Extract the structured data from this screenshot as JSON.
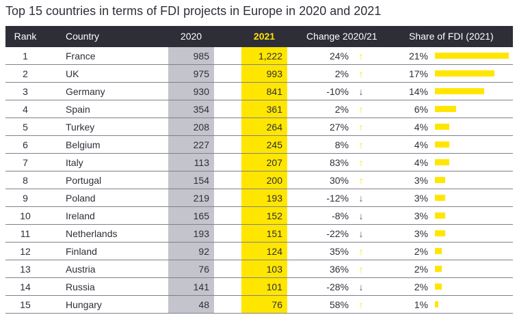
{
  "title": "Top 15 countries in terms of FDI projects in Europe in 2020 and 2021",
  "colors": {
    "header_bg": "#2e2e38",
    "accent_yellow": "#ffe600",
    "col2020_bg": "#c4c4cd",
    "arrow_up": "#ffe600",
    "arrow_down": "#5a5a66"
  },
  "header": {
    "rank": "Rank",
    "country": "Country",
    "y2020": "2020",
    "y2021": "2021",
    "change": "Change 2020/21",
    "share": "Share of FDI (2021)"
  },
  "chart_data": {
    "type": "table",
    "title": "Top 15 countries in terms of FDI projects in Europe in 2020 and 2021",
    "columns": [
      "Rank",
      "Country",
      "2020",
      "2021",
      "Change 2020/21",
      "Share of FDI (2021)"
    ],
    "rows": [
      {
        "rank": "1",
        "country": "France",
        "y2020": "985",
        "y2021": "1,222",
        "change": "24%",
        "dir": "up",
        "share": "21%",
        "share_value": 21
      },
      {
        "rank": "2",
        "country": "UK",
        "y2020": "975",
        "y2021": "993",
        "change": "2%",
        "dir": "up",
        "share": "17%",
        "share_value": 17
      },
      {
        "rank": "3",
        "country": "Germany",
        "y2020": "930",
        "y2021": "841",
        "change": "-10%",
        "dir": "down",
        "share": "14%",
        "share_value": 14
      },
      {
        "rank": "4",
        "country": "Spain",
        "y2020": "354",
        "y2021": "361",
        "change": "2%",
        "dir": "up",
        "share": "6%",
        "share_value": 6
      },
      {
        "rank": "5",
        "country": "Turkey",
        "y2020": "208",
        "y2021": "264",
        "change": "27%",
        "dir": "up",
        "share": "4%",
        "share_value": 4
      },
      {
        "rank": "6",
        "country": "Belgium",
        "y2020": "227",
        "y2021": "245",
        "change": "8%",
        "dir": "up",
        "share": "4%",
        "share_value": 4
      },
      {
        "rank": "7",
        "country": "Italy",
        "y2020": "113",
        "y2021": "207",
        "change": "83%",
        "dir": "up",
        "share": "4%",
        "share_value": 4
      },
      {
        "rank": "8",
        "country": "Portugal",
        "y2020": "154",
        "y2021": "200",
        "change": "30%",
        "dir": "up",
        "share": "3%",
        "share_value": 3
      },
      {
        "rank": "9",
        "country": "Poland",
        "y2020": "219",
        "y2021": "193",
        "change": "-12%",
        "dir": "down",
        "share": "3%",
        "share_value": 3
      },
      {
        "rank": "10",
        "country": "Ireland",
        "y2020": "165",
        "y2021": "152",
        "change": "-8%",
        "dir": "down",
        "share": "3%",
        "share_value": 3
      },
      {
        "rank": "11",
        "country": "Netherlands",
        "y2020": "193",
        "y2021": "151",
        "change": "-22%",
        "dir": "down",
        "share": "3%",
        "share_value": 3
      },
      {
        "rank": "12",
        "country": "Finland",
        "y2020": "92",
        "y2021": "124",
        "change": "35%",
        "dir": "up",
        "share": "2%",
        "share_value": 2
      },
      {
        "rank": "13",
        "country": "Austria",
        "y2020": "76",
        "y2021": "103",
        "change": "36%",
        "dir": "up",
        "share": "2%",
        "share_value": 2
      },
      {
        "rank": "14",
        "country": "Russia",
        "y2020": "141",
        "y2021": "101",
        "change": "-28%",
        "dir": "down",
        "share": "2%",
        "share_value": 2
      },
      {
        "rank": "15",
        "country": "Hungary",
        "y2020": "48",
        "y2021": "76",
        "change": "58%",
        "dir": "up",
        "share": "1%",
        "share_value": 1
      }
    ]
  }
}
